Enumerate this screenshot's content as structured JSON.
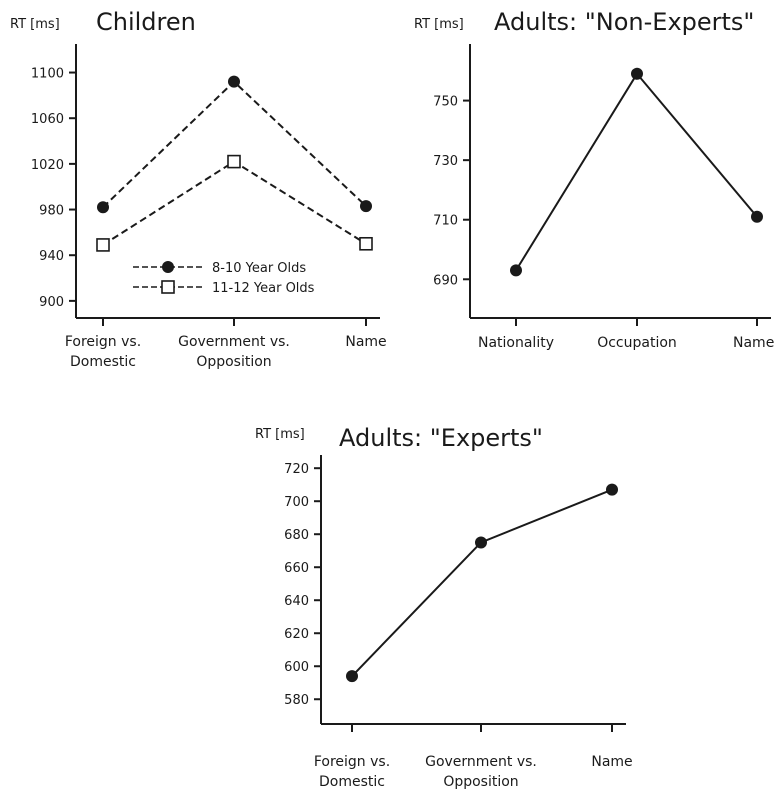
{
  "chart_data": [
    {
      "id": "children",
      "type": "line",
      "title": "Children",
      "ylabel": "RT [ms]",
      "ylim": [
        885,
        1125
      ],
      "yticks": [
        900,
        940,
        980,
        1020,
        1060,
        1100
      ],
      "categories": [
        [
          "Foreign vs.",
          "Domestic"
        ],
        [
          "Government vs.",
          "Opposition"
        ],
        [
          "Name"
        ]
      ],
      "series": [
        {
          "name": "8-10 Year Olds",
          "marker": "filled-circle",
          "dash": true,
          "values": [
            982,
            1092,
            983
          ]
        },
        {
          "name": "11-12 Year Olds",
          "marker": "open-square",
          "dash": true,
          "values": [
            949,
            1022,
            950
          ]
        }
      ],
      "legend": "bottom-center"
    },
    {
      "id": "nonexperts",
      "type": "line",
      "title": "Adults: \"Non-Experts\"",
      "ylabel": "RT [ms]",
      "ylim": [
        677,
        769
      ],
      "yticks": [
        690,
        710,
        730,
        750
      ],
      "categories": [
        [
          "Nationality"
        ],
        [
          "Occupation"
        ],
        [
          "Name"
        ]
      ],
      "series": [
        {
          "marker": "filled-circle",
          "dash": false,
          "values": [
            693,
            759,
            711
          ]
        }
      ]
    },
    {
      "id": "experts",
      "type": "line",
      "title": "Adults: \"Experts\"",
      "ylabel": "RT [ms]",
      "ylim": [
        565,
        728
      ],
      "yticks": [
        580,
        600,
        620,
        640,
        660,
        680,
        700,
        720
      ],
      "categories": [
        [
          "Foreign vs.",
          "Domestic"
        ],
        [
          "Government vs.",
          "Opposition"
        ],
        [
          "Name"
        ]
      ],
      "series": [
        {
          "marker": "filled-circle",
          "dash": false,
          "values": [
            594,
            675,
            707
          ]
        }
      ]
    }
  ]
}
